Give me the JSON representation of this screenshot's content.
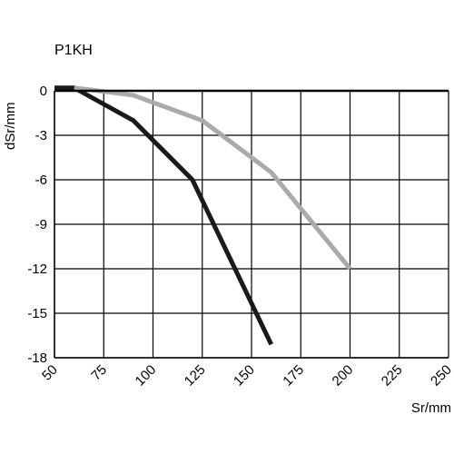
{
  "chart_data": {
    "type": "line",
    "title": "P1KH",
    "xlabel": "Sr/mm",
    "ylabel": "dSr/mm",
    "xlim": [
      50,
      250
    ],
    "ylim": [
      -18,
      0
    ],
    "xticks": [
      50,
      75,
      100,
      125,
      150,
      175,
      200,
      225,
      250
    ],
    "yticks": [
      0,
      -3,
      -6,
      -9,
      -12,
      -15,
      -18
    ],
    "xtick_labels": [
      "50",
      "75",
      "100",
      "125",
      "150",
      "175",
      "200",
      "225",
      "250"
    ],
    "ytick_labels": [
      "0",
      "-3",
      "-6",
      "-9",
      "-12",
      "-15",
      "-18"
    ],
    "grid": true,
    "series": [
      {
        "color": "#1a1a1a",
        "x": [
          50,
          60,
          90,
          120,
          160
        ],
        "y": [
          0.2,
          0.2,
          -2.0,
          -6.0,
          -17.1
        ]
      },
      {
        "color": "#aaaaaa",
        "x": [
          60,
          90,
          125,
          160,
          200
        ],
        "y": [
          0.2,
          -0.3,
          -2.0,
          -5.5,
          -12.0
        ]
      }
    ]
  }
}
